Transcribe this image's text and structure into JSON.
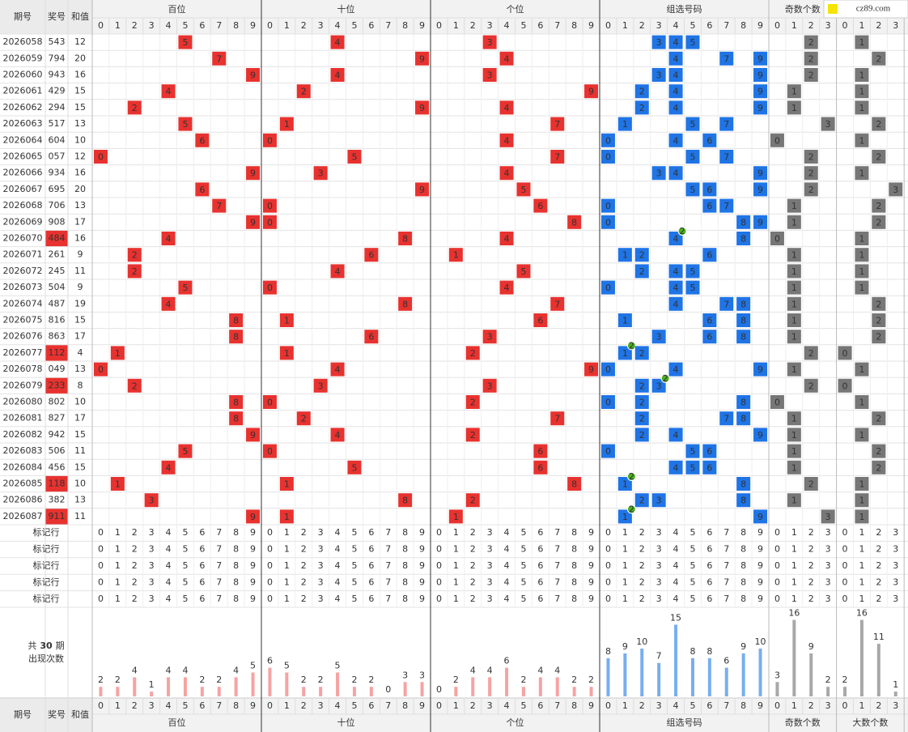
{
  "header": {
    "period": "期号",
    "number": "奖号",
    "sum": "和值",
    "groups": [
      {
        "name": "百位",
        "digits": [
          0,
          1,
          2,
          3,
          4,
          5,
          6,
          7,
          8,
          9
        ]
      },
      {
        "name": "十位",
        "digits": [
          0,
          1,
          2,
          3,
          4,
          5,
          6,
          7,
          8,
          9
        ]
      },
      {
        "name": "个位",
        "digits": [
          0,
          1,
          2,
          3,
          4,
          5,
          6,
          7,
          8,
          9
        ]
      },
      {
        "name": "组选号码",
        "digits": [
          0,
          1,
          2,
          3,
          4,
          5,
          6,
          7,
          8,
          9
        ]
      },
      {
        "name": "奇数个数",
        "digits": [
          0,
          1,
          2,
          3
        ]
      },
      {
        "name": "大数个数",
        "digits": [
          0,
          1,
          2,
          3
        ]
      }
    ]
  },
  "watermark": "cz89.com",
  "rows": [
    {
      "period": "2026058",
      "number": "543",
      "sum": 12
    },
    {
      "period": "2026059",
      "number": "794",
      "sum": 20
    },
    {
      "period": "2026060",
      "number": "943",
      "sum": 16
    },
    {
      "period": "2026061",
      "number": "429",
      "sum": 15
    },
    {
      "period": "2026062",
      "number": "294",
      "sum": 15
    },
    {
      "period": "2026063",
      "number": "517",
      "sum": 13
    },
    {
      "period": "2026064",
      "number": "604",
      "sum": 10
    },
    {
      "period": "2026065",
      "number": "057",
      "sum": 12
    },
    {
      "period": "2026066",
      "number": "934",
      "sum": 16
    },
    {
      "period": "2026067",
      "number": "695",
      "sum": 20
    },
    {
      "period": "2026068",
      "number": "706",
      "sum": 13
    },
    {
      "period": "2026069",
      "number": "908",
      "sum": 17
    },
    {
      "period": "2026070",
      "number": "484",
      "sum": 16,
      "repeat": 2
    },
    {
      "period": "2026071",
      "number": "261",
      "sum": 9
    },
    {
      "period": "2026072",
      "number": "245",
      "sum": 11
    },
    {
      "period": "2026073",
      "number": "504",
      "sum": 9
    },
    {
      "period": "2026074",
      "number": "487",
      "sum": 19
    },
    {
      "period": "2026075",
      "number": "816",
      "sum": 15
    },
    {
      "period": "2026076",
      "number": "863",
      "sum": 17
    },
    {
      "period": "2026077",
      "number": "112",
      "sum": 4,
      "repeat": 2
    },
    {
      "period": "2026078",
      "number": "049",
      "sum": 13
    },
    {
      "period": "2026079",
      "number": "233",
      "sum": 8,
      "repeat": 2
    },
    {
      "period": "2026080",
      "number": "802",
      "sum": 10
    },
    {
      "period": "2026081",
      "number": "827",
      "sum": 17
    },
    {
      "period": "2026082",
      "number": "942",
      "sum": 15
    },
    {
      "period": "2026083",
      "number": "506",
      "sum": 11
    },
    {
      "period": "2026084",
      "number": "456",
      "sum": 15
    },
    {
      "period": "2026085",
      "number": "118",
      "sum": 10,
      "repeat": 2
    },
    {
      "period": "2026086",
      "number": "382",
      "sum": 13
    },
    {
      "period": "2026087",
      "number": "911",
      "sum": 11,
      "repeat": 2
    }
  ],
  "marker_rows": [
    "标记行",
    "标记行",
    "标记行",
    "标记行",
    "标记行"
  ],
  "stats": {
    "prefix": "共",
    "periods": 30,
    "suffix": "期",
    "label": "出现次数",
    "counts": [
      [
        2,
        2,
        4,
        1,
        4,
        4,
        2,
        2,
        4,
        5
      ],
      [
        6,
        5,
        2,
        2,
        5,
        2,
        2,
        0,
        3,
        3
      ],
      [
        0,
        2,
        4,
        4,
        6,
        2,
        4,
        4,
        2,
        2
      ],
      [
        8,
        9,
        10,
        7,
        15,
        8,
        8,
        6,
        9,
        10
      ],
      [
        3,
        16,
        9,
        2
      ],
      [
        2,
        16,
        11,
        1
      ]
    ]
  }
}
